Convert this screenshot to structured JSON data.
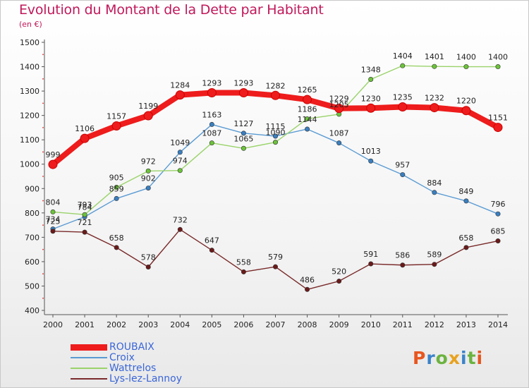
{
  "title": "Evolution du Montant de la Dette par Habitant",
  "unit": "(en €)",
  "logo": {
    "text": "Proxiti",
    "colors": [
      "#e8561f",
      "#3a83c9",
      "#6cb33f",
      "#e8a21f",
      "#3a83c9",
      "#6cb33f",
      "#e8561f"
    ]
  },
  "chart_data": {
    "type": "line",
    "x": [
      2000,
      2001,
      2002,
      2003,
      2004,
      2005,
      2006,
      2007,
      2008,
      2009,
      2010,
      2011,
      2012,
      2013,
      2014
    ],
    "ylim": [
      400,
      1500
    ],
    "yticks": [
      400,
      500,
      600,
      700,
      800,
      900,
      1000,
      1100,
      1200,
      1300,
      1400,
      1500
    ],
    "grid": false,
    "legend_position": "bottom-left",
    "series": [
      {
        "name": "ROUBAIX",
        "color": "#ee1c1c",
        "marker": "#ee1c1c",
        "bold": true,
        "values": [
          999,
          1106,
          1157,
          1199,
          1284,
          1293,
          1293,
          1282,
          1265,
          1229,
          1230,
          1235,
          1232,
          1220,
          1151
        ]
      },
      {
        "name": "Croix",
        "color": "#5a9bd3",
        "marker": "#3a7fc0",
        "bold": false,
        "values": [
          734,
          784,
          859,
          902,
          1049,
          1163,
          1127,
          1115,
          1144,
          1087,
          1013,
          957,
          884,
          849,
          796
        ]
      },
      {
        "name": "Wattrelos",
        "color": "#9ad36a",
        "marker": "#6cc33a",
        "bold": false,
        "values": [
          804,
          793,
          905,
          972,
          974,
          1087,
          1065,
          1090,
          1186,
          1205,
          1348,
          1404,
          1401,
          1400,
          1400
        ]
      },
      {
        "name": "Lys-lez-Lannoy",
        "color": "#7a2a2a",
        "marker": "#6b1a1a",
        "bold": false,
        "values": [
          725,
          721,
          658,
          578,
          732,
          647,
          558,
          579,
          486,
          520,
          591,
          586,
          589,
          658,
          685
        ]
      }
    ]
  }
}
